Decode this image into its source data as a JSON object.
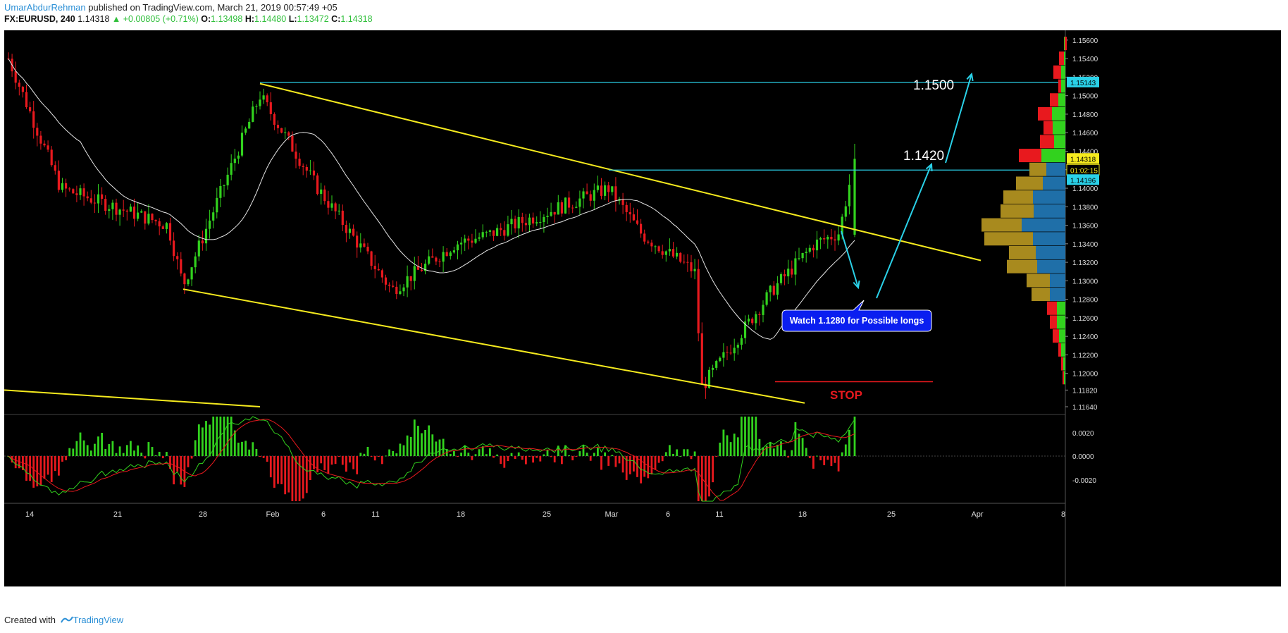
{
  "header": {
    "author": "UmarAbdurRehman",
    "published": "published on TradingView.com, March 21, 2019 00:57:49 +05",
    "symbol": "FX:EURUSD, 240",
    "last": "1.14318",
    "change": "▲ +0.00805 (+0.71%)",
    "o_label": "O:",
    "o": "1.13498",
    "h_label": "H:",
    "h": "1.14480",
    "l_label": "L:",
    "l": "1.13472",
    "c_label": "C:",
    "c": "1.14318"
  },
  "footer": {
    "created": "Created with",
    "brand": "TradingView"
  },
  "colors": {
    "bull": "#32d21e",
    "bear": "#e8191e",
    "trend": "#f5ea1e",
    "level": "#2ad1e8",
    "ma": "#e6e6e6",
    "bg": "#000000",
    "badge": "#0a1ef0",
    "stop": "#e8191e",
    "vp_up": "#1f6fa8",
    "vp_down": "#a88a1e"
  },
  "chart_data": {
    "type": "candlestick",
    "symbol": "EURUSD",
    "timeframe": "240",
    "ylim": [
      1.1164,
      1.1566
    ],
    "y_ticks": [
      "1.15600",
      "1.15400",
      "1.15200",
      "1.15000",
      "1.14800",
      "1.14600",
      "1.14400",
      "1.14200",
      "1.14000",
      "1.13800",
      "1.13600",
      "1.13400",
      "1.13200",
      "1.13000",
      "1.12800",
      "1.12600",
      "1.12400",
      "1.12200",
      "1.12000",
      "1.11820",
      "1.11640"
    ],
    "x_ticks": [
      "14",
      "21",
      "28",
      "Feb",
      "6",
      "11",
      "18",
      "25",
      "Mar",
      "6",
      "11",
      "18",
      "25",
      "Apr",
      "8"
    ],
    "price_tags": [
      {
        "label": "1.15143",
        "kind": "level"
      },
      {
        "label": "1.14318",
        "kind": "last"
      },
      {
        "label": "01:02:15",
        "kind": "timer"
      },
      {
        "label": "1.14196",
        "kind": "level"
      }
    ],
    "annotations": {
      "target_1": "1.1500",
      "target_2": "1.1420",
      "note": "Watch 1.1280 for Possible longs",
      "stop": "STOP"
    },
    "horizontal_levels": [
      1.15143,
      1.14196,
      1.1284
    ],
    "channel": {
      "upper": [
        [
          1.1513,
          "Jan 31"
        ],
        [
          1.1322,
          "Mar 26"
        ]
      ],
      "lower": [
        [
          1.1291,
          "Jan 26"
        ],
        [
          1.1168,
          "Mar 16"
        ]
      ]
    },
    "key_points": [
      {
        "date": "Jan 10",
        "close": 1.154
      },
      {
        "date": "Jan 17",
        "close": 1.14
      },
      {
        "date": "Jan 24",
        "close": 1.136
      },
      {
        "date": "Jan 26",
        "close": 1.1295
      },
      {
        "date": "Jan 31",
        "close": 1.15
      },
      {
        "date": "Feb 7",
        "close": 1.14
      },
      {
        "date": "Feb 12",
        "close": 1.129
      },
      {
        "date": "Feb 18",
        "close": 1.134
      },
      {
        "date": "Feb 21",
        "close": 1.135
      },
      {
        "date": "Feb 28",
        "close": 1.14
      },
      {
        "date": "Mar 4",
        "close": 1.135
      },
      {
        "date": "Mar 7",
        "close": 1.131
      },
      {
        "date": "Mar 8",
        "close": 1.1185
      },
      {
        "date": "Mar 13",
        "close": 1.129
      },
      {
        "date": "Mar 18",
        "close": 1.134
      },
      {
        "date": "Mar 20",
        "close": 1.1352
      },
      {
        "date": "Mar 21",
        "close": 1.14318
      }
    ],
    "volume_profile_note": "Volume profile bars on the right side of price pane",
    "macd": {
      "ylim": [
        -0.0035,
        0.0025
      ],
      "y_ticks": [
        "0.0020",
        "0.0000",
        "-0.0020"
      ]
    }
  }
}
